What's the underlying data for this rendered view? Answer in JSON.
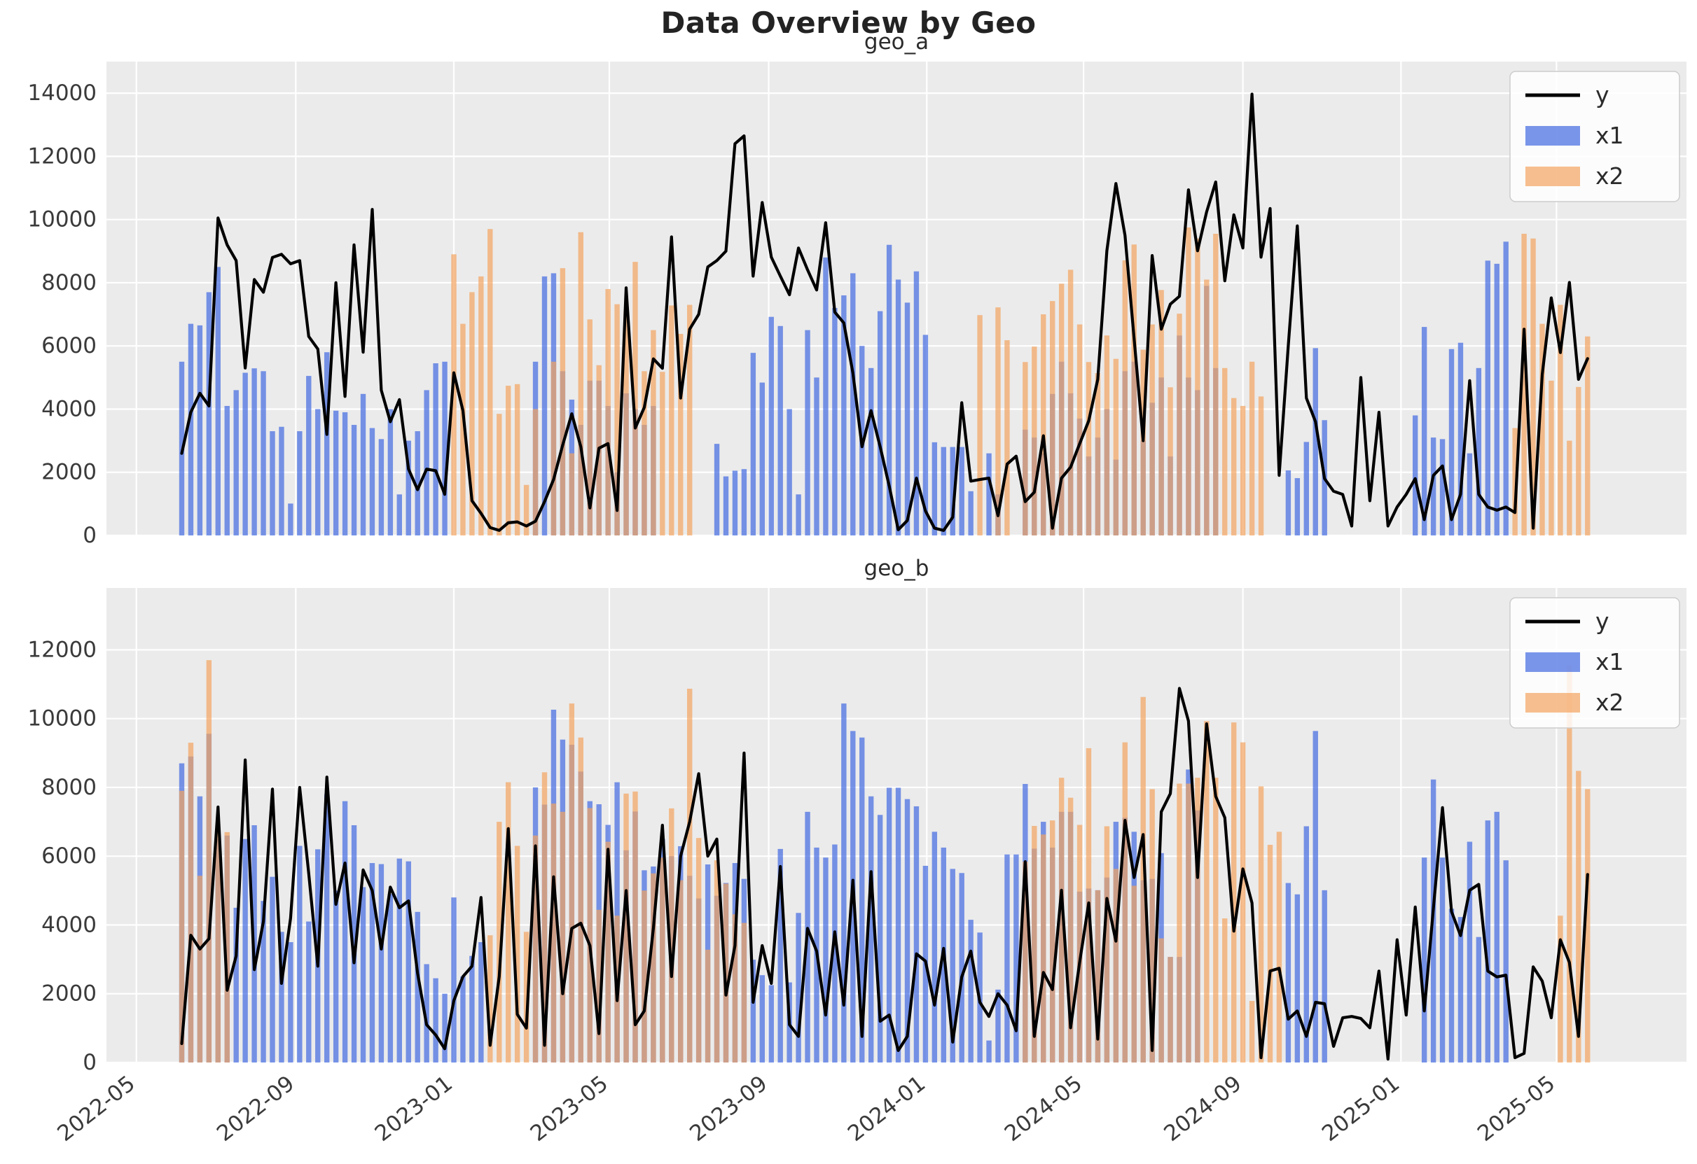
{
  "suptitle": "Data Overview by Geo",
  "legend": {
    "items": [
      {
        "label": "y",
        "type": "line",
        "color": "#000000"
      },
      {
        "label": "x1",
        "type": "bar",
        "color": "#4169e1"
      },
      {
        "label": "x2",
        "type": "bar",
        "color": "#f4a460"
      }
    ]
  },
  "colors": {
    "figure_bg": "#ffffff",
    "plot_bg": "#ebebeb",
    "grid": "#ffffff",
    "line": "#000000",
    "x1_bar": "#4169e1",
    "x2_bar": "#f4a460",
    "bar_alpha": 0.7,
    "tick_text": "#3a3a3a"
  },
  "chart_data": [
    {
      "title": "geo_a",
      "type": "line+bar",
      "x_start": "2022-06-05",
      "x_step_days": 7,
      "ylim": [
        0,
        15000
      ],
      "yticks": [
        0,
        2000,
        4000,
        6000,
        8000,
        10000,
        12000,
        14000
      ],
      "series": [
        {
          "name": "y",
          "type": "line",
          "values": [
            2600,
            3900,
            4500,
            4100,
            10050,
            9200,
            8700,
            5300,
            8100,
            7700,
            8800,
            8900,
            8600,
            8700,
            6300,
            5900,
            3200,
            8000,
            4400,
            9200,
            5800,
            10320,
            4600,
            3600,
            4300,
            2100,
            1450,
            2100,
            2050,
            1300,
            5150,
            3950,
            1100,
            700,
            250,
            160,
            400,
            430,
            300,
            450,
            1070,
            1770,
            2860,
            3850,
            2810,
            870,
            2760,
            2910,
            790,
            7840,
            3400,
            4050,
            5590,
            5290,
            9450,
            4350,
            6530,
            7000,
            8500,
            8700,
            9000,
            12400,
            12650,
            8210,
            10540,
            8810,
            8210,
            7620,
            9100,
            8410,
            7770,
            9900,
            7070,
            6730,
            5140,
            2810,
            3950,
            2810,
            1570,
            180,
            475,
            1815,
            775,
            230,
            160,
            575,
            4200,
            1720,
            1770,
            1815,
            625,
            2260,
            2510,
            1070,
            1370,
            3155,
            230,
            1815,
            2160,
            2900,
            3630,
            4940,
            9010,
            11140,
            9500,
            6230,
            3000,
            8860,
            6530,
            7320,
            7570,
            10940,
            9010,
            10240,
            11190,
            8060,
            10150,
            9100,
            13970,
            8810,
            10350,
            1900,
            6000,
            9800,
            4350,
            3600,
            1800,
            1400,
            1300,
            300,
            5000,
            1100,
            3900,
            300,
            900,
            1300,
            1800,
            500,
            1900,
            2200,
            500,
            1300,
            4900,
            1300,
            900,
            800,
            900,
            725,
            6530,
            230,
            5090,
            7520,
            5790,
            8010,
            4940,
            5600
          ]
        },
        {
          "name": "x1",
          "type": "bar",
          "values": [
            5500,
            6700,
            6650,
            7700,
            8500,
            4100,
            4600,
            5150,
            5290,
            5200,
            3300,
            3440,
            1010,
            3300,
            5050,
            4000,
            5800,
            3950,
            3900,
            3500,
            4480,
            3400,
            3050,
            4000,
            1300,
            3000,
            3300,
            4600,
            5450,
            5500,
            null,
            null,
            null,
            null,
            null,
            null,
            null,
            null,
            null,
            5500,
            8200,
            8300,
            5200,
            4300,
            3500,
            4900,
            4900,
            4100,
            2000,
            4500,
            4000,
            3500,
            4100,
            null,
            null,
            null,
            null,
            null,
            null,
            2900,
            1870,
            2050,
            2100,
            5780,
            4840,
            6920,
            6630,
            4000,
            1300,
            6500,
            5000,
            8800,
            7200,
            7600,
            8300,
            6000,
            5300,
            7100,
            9200,
            8100,
            7370,
            8360,
            6350,
            2950,
            2800,
            2800,
            2800,
            1400,
            null,
            2600,
            1300,
            null,
            null,
            3350,
            3100,
            2600,
            4480,
            5500,
            4500,
            3700,
            2500,
            3100,
            4000,
            2400,
            5200,
            5500,
            3000,
            4200,
            5000,
            2500,
            6330,
            5000,
            4600,
            7900,
            5300,
            null,
            null,
            null,
            null,
            null,
            null,
            null,
            2060,
            1815,
            2960,
            5930,
            3650,
            null,
            null,
            null,
            null,
            null,
            null,
            null,
            null,
            null,
            3800,
            6600,
            3100,
            3050,
            5900,
            6100,
            2600,
            5300,
            8700,
            8600,
            9300,
            null,
            null,
            null,
            null,
            null,
            null,
            null,
            null,
            null
          ]
        },
        {
          "name": "x2",
          "type": "bar",
          "values": [
            null,
            null,
            null,
            null,
            null,
            null,
            null,
            null,
            null,
            null,
            null,
            null,
            null,
            null,
            null,
            null,
            null,
            null,
            null,
            null,
            null,
            null,
            null,
            null,
            null,
            null,
            null,
            null,
            null,
            null,
            8900,
            6700,
            7700,
            8200,
            9700,
            3850,
            4740,
            4790,
            1600,
            4000,
            null,
            5500,
            8460,
            2600,
            9600,
            6840,
            5390,
            7800,
            7320,
            7100,
            8660,
            5200,
            6500,
            5180,
            7280,
            6380,
            7300,
            null,
            null,
            null,
            null,
            null,
            null,
            null,
            null,
            null,
            null,
            null,
            null,
            null,
            null,
            null,
            null,
            null,
            null,
            null,
            null,
            null,
            null,
            null,
            null,
            null,
            null,
            null,
            null,
            null,
            null,
            null,
            6975,
            null,
            7220,
            6180,
            null,
            5490,
            5980,
            7000,
            7420,
            7970,
            8410,
            6680,
            5490,
            5140,
            6330,
            5590,
            8710,
            9210,
            5880,
            6680,
            7770,
            4690,
            7020,
            9750,
            9400,
            8100,
            9550,
            5300,
            4350,
            4100,
            5500,
            4400,
            null,
            null,
            null,
            null,
            null,
            null,
            null,
            null,
            null,
            null,
            null,
            null,
            null,
            null,
            null,
            null,
            null,
            null,
            null,
            null,
            null,
            null,
            null,
            null,
            null,
            null,
            null,
            3400,
            9550,
            9400,
            6700,
            4900,
            7300,
            3000,
            4700,
            6300
          ]
        }
      ]
    },
    {
      "title": "geo_b",
      "type": "line+bar",
      "x_start": "2022-06-05",
      "x_step_days": 7,
      "ylim": [
        0,
        13800
      ],
      "yticks": [
        0,
        2000,
        4000,
        6000,
        8000,
        10000,
        12000
      ],
      "series": [
        {
          "name": "y",
          "type": "line",
          "values": [
            550,
            3700,
            3300,
            3600,
            7430,
            2100,
            3100,
            8800,
            2700,
            4100,
            7950,
            2300,
            4200,
            8000,
            5500,
            2800,
            8300,
            4600,
            5800,
            2900,
            5600,
            5000,
            3300,
            5100,
            4500,
            4700,
            2600,
            1100,
            800,
            400,
            1800,
            2500,
            2800,
            4800,
            500,
            2500,
            6800,
            1400,
            1000,
            6300,
            500,
            5400,
            2000,
            3900,
            4050,
            3400,
            840,
            6200,
            1800,
            5000,
            1100,
            1500,
            3900,
            6900,
            2500,
            6000,
            7000,
            8400,
            6000,
            6500,
            1960,
            3400,
            9000,
            1750,
            3400,
            2300,
            5700,
            1100,
            760,
            3900,
            3240,
            1380,
            3800,
            1670,
            5300,
            760,
            5550,
            1200,
            1380,
            350,
            760,
            3160,
            2950,
            1670,
            3320,
            595,
            2490,
            3240,
            1750,
            1340,
            2000,
            1670,
            925,
            5840,
            760,
            2620,
            2120,
            5010,
            1010,
            2910,
            4640,
            680,
            4770,
            3530,
            7040,
            5380,
            6630,
            350,
            7290,
            7820,
            10880,
            9930,
            5380,
            9850,
            7740,
            7120,
            3820,
            5630,
            4640,
            140,
            2660,
            2740,
            1260,
            1500,
            760,
            1750,
            1710,
            470,
            1300,
            1340,
            1280,
            1010,
            2660,
            100,
            3570,
            1380,
            4520,
            1500,
            4480,
            7410,
            4390,
            3690,
            5010,
            5180,
            2660,
            2490,
            2540,
            140,
            265,
            2780,
            2370,
            1300,
            3570,
            2910,
            760,
            5470
          ]
        },
        {
          "name": "x1",
          "type": "bar",
          "values": [
            8700,
            8900,
            7740,
            9560,
            6500,
            6600,
            4500,
            6500,
            6900,
            4700,
            5400,
            3800,
            3500,
            6300,
            4100,
            6200,
            7800,
            5000,
            7600,
            6900,
            5100,
            5800,
            5770,
            4900,
            5930,
            5850,
            4380,
            2860,
            2450,
            2000,
            4800,
            2500,
            3100,
            3500,
            null,
            null,
            null,
            null,
            null,
            8000,
            7500,
            10260,
            9390,
            9240,
            8460,
            7600,
            7510,
            6910,
            8150,
            6170,
            7300,
            5590,
            5700,
            6500,
            6000,
            6290,
            5430,
            4770,
            5760,
            4850,
            5220,
            5800,
            5340,
            2990,
            2540,
            2250,
            6210,
            2330,
            4350,
            7290,
            6250,
            5960,
            6340,
            10440,
            9640,
            9450,
            7740,
            7200,
            7990,
            7990,
            7660,
            7450,
            5720,
            6710,
            6250,
            5630,
            5510,
            4150,
            3780,
            640,
            2120,
            6050,
            6050,
            8100,
            6220,
            7000,
            6250,
            7290,
            7290,
            4970,
            5060,
            5010,
            5380,
            7000,
            7120,
            6710,
            5300,
            5340,
            6090,
            3070,
            3070,
            8520,
            7330,
            null,
            null,
            null,
            null,
            null,
            null,
            null,
            null,
            null,
            5220,
            4890,
            6870,
            9640,
            5010,
            null,
            null,
            null,
            null,
            null,
            null,
            null,
            null,
            null,
            null,
            5960,
            8230,
            5960,
            4470,
            4230,
            6420,
            3650,
            7040,
            7290,
            5880,
            null,
            null,
            null,
            null,
            null,
            null,
            null,
            null,
            null
          ]
        },
        {
          "name": "x2",
          "type": "bar",
          "values": [
            7900,
            9300,
            5430,
            11700,
            6700,
            6700,
            null,
            null,
            null,
            null,
            null,
            null,
            null,
            null,
            null,
            null,
            null,
            null,
            null,
            null,
            null,
            null,
            null,
            null,
            null,
            null,
            null,
            null,
            null,
            null,
            null,
            null,
            null,
            null,
            3700,
            7000,
            8150,
            6300,
            3800,
            6600,
            8440,
            7530,
            7290,
            10440,
            9450,
            7400,
            4440,
            6420,
            4270,
            7820,
            7880,
            5000,
            5500,
            5960,
            7390,
            5300,
            10870,
            6530,
            3280,
            5880,
            5200,
            4310,
            4060,
            null,
            null,
            null,
            null,
            null,
            null,
            null,
            null,
            null,
            null,
            null,
            null,
            null,
            null,
            null,
            null,
            null,
            null,
            null,
            null,
            null,
            null,
            null,
            null,
            null,
            null,
            null,
            null,
            null,
            null,
            5840,
            6880,
            6630,
            7040,
            8280,
            7700,
            6910,
            9140,
            5010,
            6870,
            5630,
            9310,
            5140,
            10630,
            7950,
            3610,
            3070,
            8110,
            8110,
            8280,
            9930,
            8280,
            4190,
            9890,
            9310,
            1790,
            8030,
            6330,
            6710,
            null,
            null,
            null,
            null,
            null,
            null,
            null,
            null,
            null,
            null,
            null,
            null,
            null,
            null,
            null,
            null,
            null,
            null,
            null,
            null,
            null,
            null,
            null,
            null,
            null,
            null,
            null,
            null,
            null,
            null,
            4270,
            11540,
            8480,
            7950
          ]
        }
      ]
    }
  ],
  "x_axis": {
    "ticks": [
      {
        "label": "2022-05",
        "date": "2022-05-01"
      },
      {
        "label": "2022-09",
        "date": "2022-09-01"
      },
      {
        "label": "2023-01",
        "date": "2023-01-01"
      },
      {
        "label": "2023-05",
        "date": "2023-05-01"
      },
      {
        "label": "2023-09",
        "date": "2023-09-01"
      },
      {
        "label": "2024-01",
        "date": "2024-01-01"
      },
      {
        "label": "2024-05",
        "date": "2024-05-01"
      },
      {
        "label": "2024-09",
        "date": "2024-09-01"
      },
      {
        "label": "2025-01",
        "date": "2025-01-01"
      },
      {
        "label": "2025-05",
        "date": "2025-05-01"
      }
    ]
  }
}
